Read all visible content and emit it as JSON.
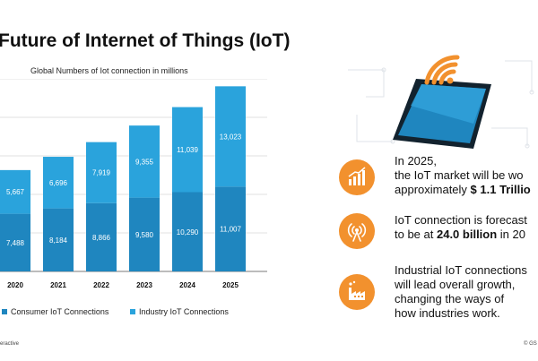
{
  "title": "Future of Internet of Things (IoT)",
  "colors": {
    "consumer": "#1f86bf",
    "industry": "#2aa3dc",
    "accent": "#f2912e"
  },
  "chart_data": {
    "type": "bar",
    "stacked": true,
    "title": "Global Numbers of Iot connection in millions",
    "categories": [
      "2020",
      "2021",
      "2022",
      "2023",
      "2024",
      "2025"
    ],
    "series": [
      {
        "name": "Consumer IoT Connections",
        "values": [
          7488,
          8184,
          8866,
          9580,
          10290,
          11007
        ],
        "labels": [
          "7,488",
          "8,184",
          "8,866",
          "9,580",
          "10,290",
          "11,007"
        ]
      },
      {
        "name": "Industry IoT Connections",
        "values": [
          5667,
          6696,
          7919,
          9355,
          11039,
          13023
        ],
        "labels": [
          "5,667",
          "6,696",
          "7,919",
          "9,355",
          "11,039",
          "13,023"
        ]
      }
    ],
    "ylim": [
      0,
      25000
    ],
    "grid": true,
    "legend": "bottom"
  },
  "facts": [
    {
      "icon": "bar-chart-icon",
      "lines": [
        "In 2025,",
        "the IoT market will be wo"
      ],
      "last_pre": "approximately ",
      "last_bold": "$ 1.1 Trillio",
      "last_post": ""
    },
    {
      "icon": "signal-tower-icon",
      "lines": [
        "IoT connection is forecast"
      ],
      "last_pre": "to be at ",
      "last_bold": "24.0 billion",
      "last_post": " in 20"
    },
    {
      "icon": "factory-icon",
      "lines": [
        "Industrial IoT connections",
        "will lead overall growth,",
        "changing the ways of"
      ],
      "last_pre": "how industries work.",
      "last_bold": "",
      "last_post": ""
    }
  ],
  "footer": {
    "left": "eractive",
    "right": "© GS"
  }
}
